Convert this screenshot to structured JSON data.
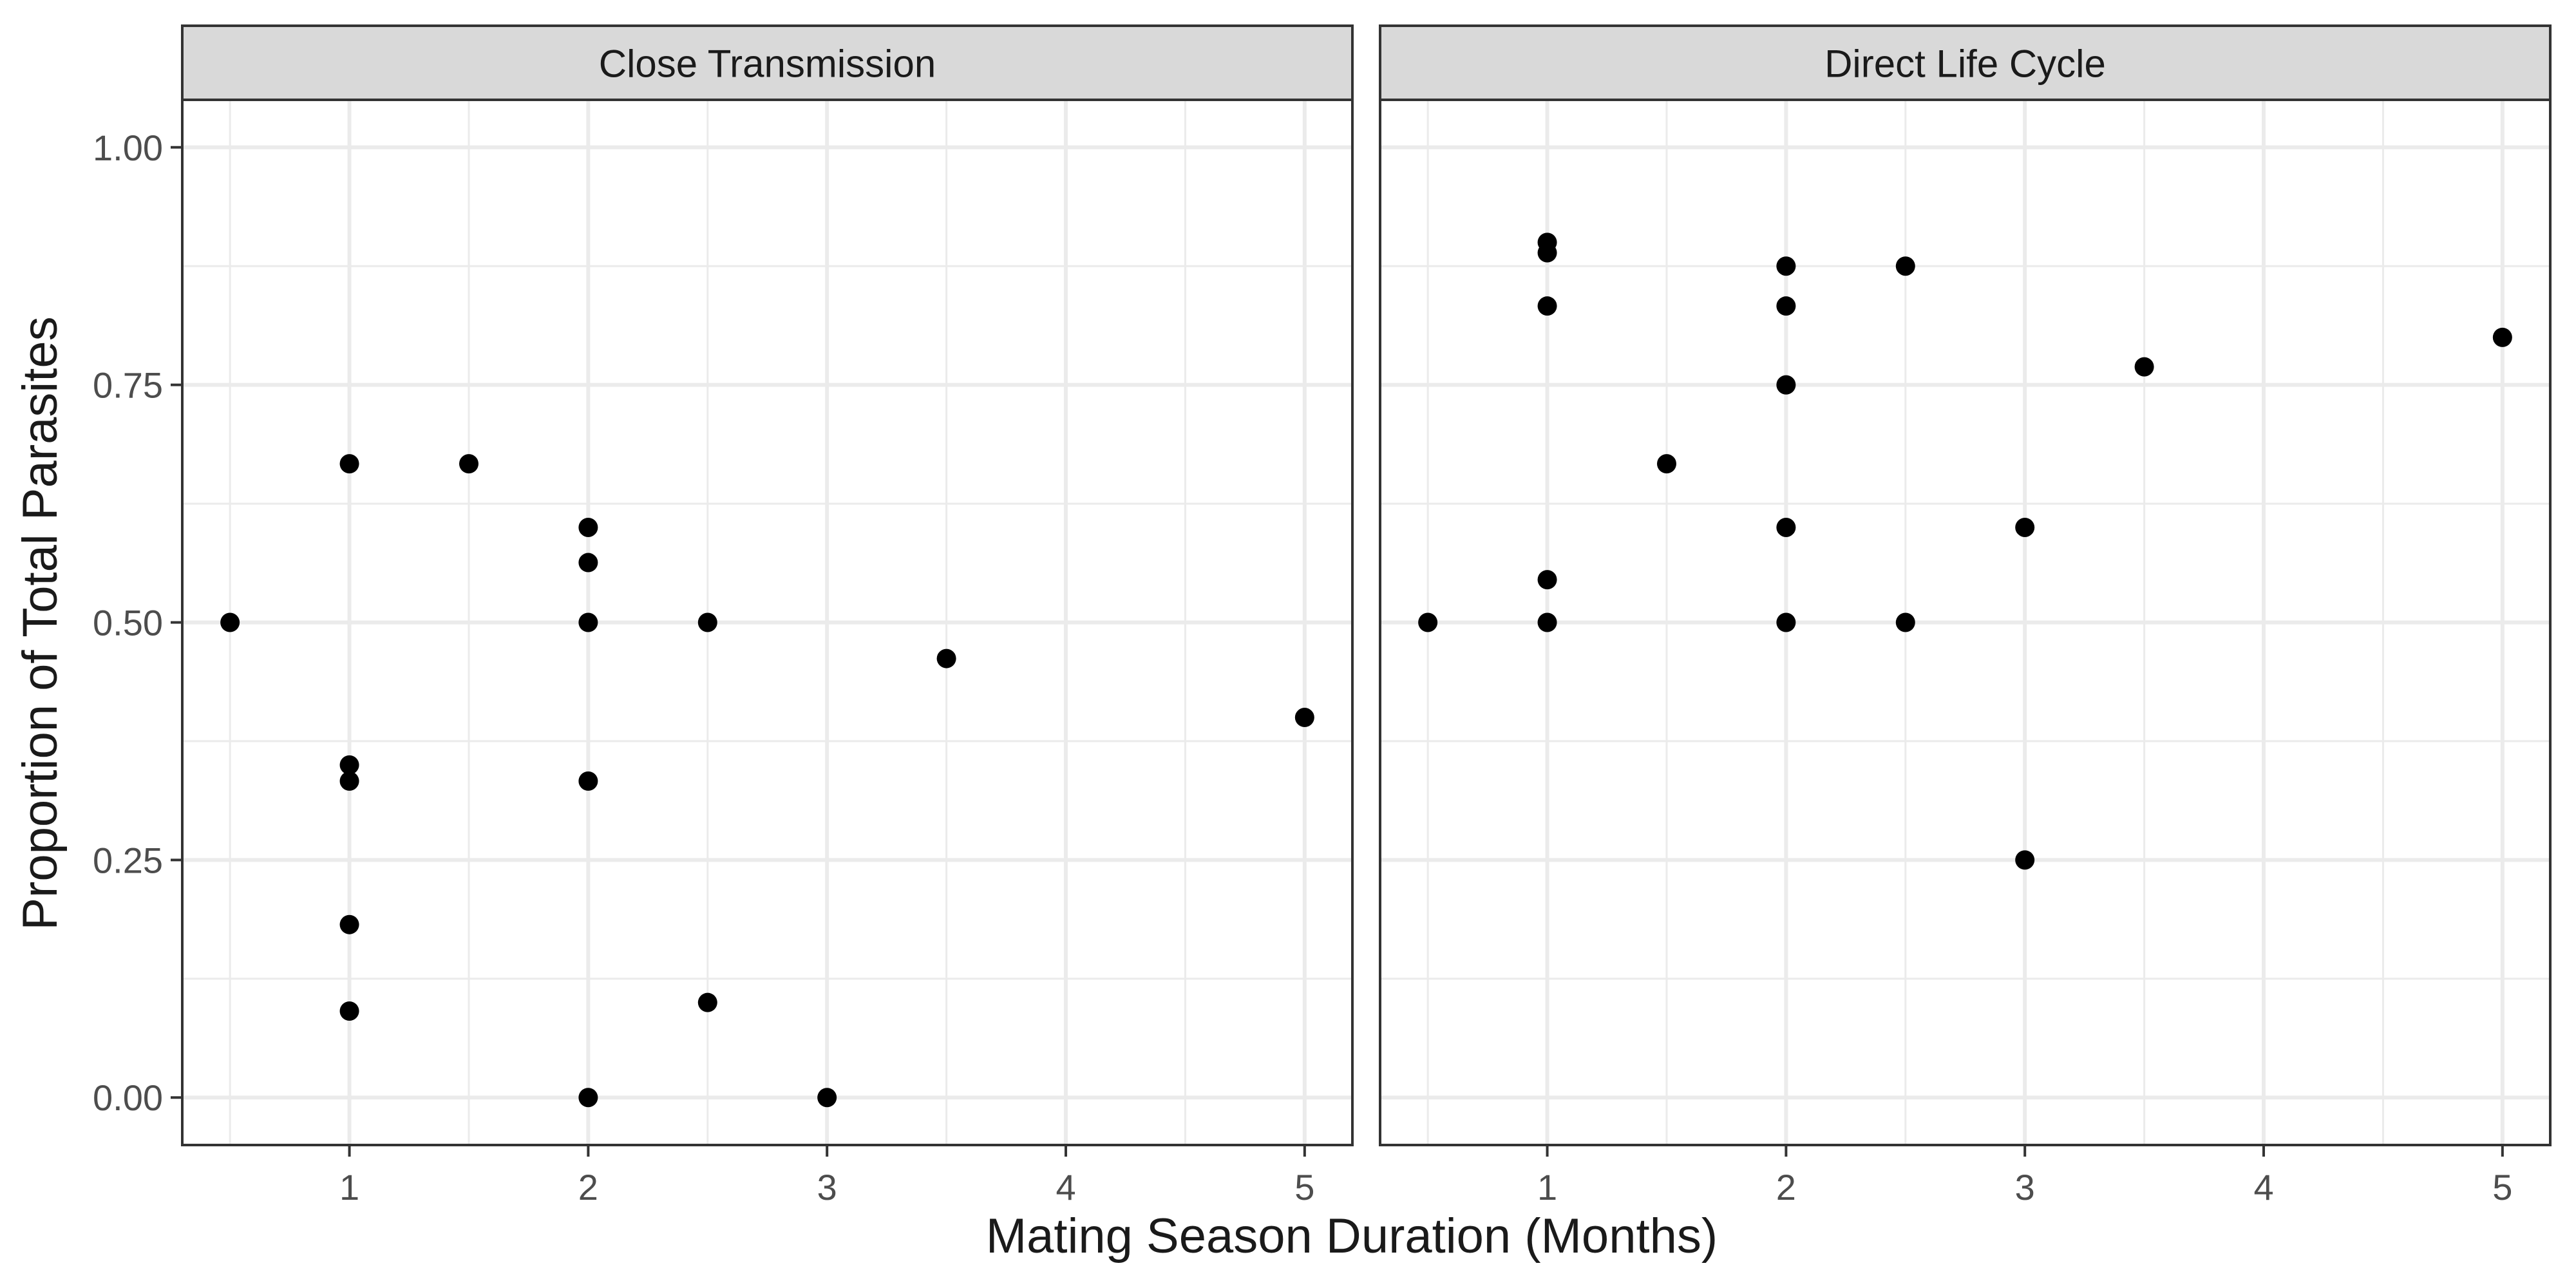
{
  "chart_data": {
    "type": "scatter",
    "xlabel": "Mating Season Duration (Months)",
    "ylabel": "Proportion of Total Parasites",
    "xlim": [
      0.3,
      5.2
    ],
    "ylim": [
      -0.05,
      1.05
    ],
    "x_ticks": [
      1,
      2,
      3,
      4,
      5
    ],
    "y_ticks": [
      0,
      0.25,
      0.5,
      0.75,
      1
    ],
    "y_tick_labels": [
      "0.00",
      "0.25",
      "0.50",
      "0.75",
      "1.00"
    ],
    "x_tick_labels": [
      "1",
      "2",
      "3",
      "4",
      "5"
    ],
    "grid": true,
    "point_color": "#000000",
    "strip_fill": "#d9d9d9",
    "panels": [
      {
        "title": "Close Transmission",
        "points": [
          {
            "x": 0.5,
            "y": 0.5
          },
          {
            "x": 1,
            "y": 0.667
          },
          {
            "x": 1,
            "y": 0.35
          },
          {
            "x": 1,
            "y": 0.333
          },
          {
            "x": 1,
            "y": 0.182
          },
          {
            "x": 1,
            "y": 0.091
          },
          {
            "x": 1.5,
            "y": 0.667
          },
          {
            "x": 2,
            "y": 0.6
          },
          {
            "x": 2,
            "y": 0.563
          },
          {
            "x": 2,
            "y": 0.5
          },
          {
            "x": 2,
            "y": 0.333
          },
          {
            "x": 2,
            "y": 0.0
          },
          {
            "x": 2.5,
            "y": 0.5
          },
          {
            "x": 2.5,
            "y": 0.1
          },
          {
            "x": 3,
            "y": 0.0
          },
          {
            "x": 3.5,
            "y": 0.462
          },
          {
            "x": 5,
            "y": 0.4
          }
        ]
      },
      {
        "title": "Direct Life Cycle",
        "points": [
          {
            "x": 0.5,
            "y": 0.5
          },
          {
            "x": 1,
            "y": 0.9
          },
          {
            "x": 1,
            "y": 0.889
          },
          {
            "x": 1,
            "y": 0.833
          },
          {
            "x": 1,
            "y": 0.545
          },
          {
            "x": 1,
            "y": 0.5
          },
          {
            "x": 1.5,
            "y": 0.667
          },
          {
            "x": 2,
            "y": 0.875
          },
          {
            "x": 2,
            "y": 0.833
          },
          {
            "x": 2,
            "y": 0.75
          },
          {
            "x": 2,
            "y": 0.6
          },
          {
            "x": 2,
            "y": 0.5
          },
          {
            "x": 2.5,
            "y": 0.875
          },
          {
            "x": 2.5,
            "y": 0.5
          },
          {
            "x": 3,
            "y": 0.6
          },
          {
            "x": 3,
            "y": 0.25
          },
          {
            "x": 3.5,
            "y": 0.769
          },
          {
            "x": 5,
            "y": 0.8
          }
        ]
      }
    ]
  }
}
